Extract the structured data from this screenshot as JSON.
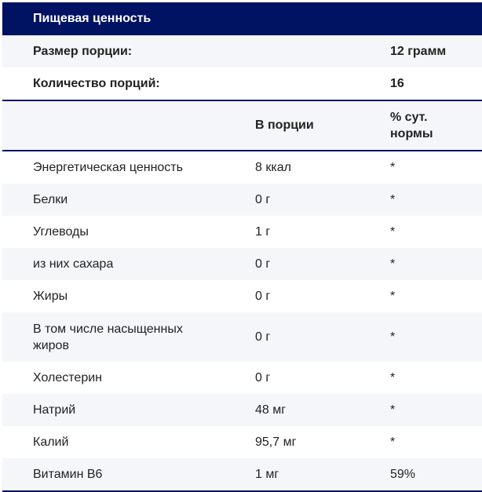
{
  "title": "Пищевая ценность",
  "serving_size": {
    "label": "Размер порции:",
    "value": "12 грамм"
  },
  "servings_count": {
    "label": "Количество порций:",
    "value": "16"
  },
  "columns": {
    "per_serving": "В порции",
    "daily_value": "% сут. нормы"
  },
  "rows": [
    {
      "name": "Энергетическая ценность",
      "amount": "8 ккал",
      "dv": "*"
    },
    {
      "name": "Белки",
      "amount": "0 г",
      "dv": "*"
    },
    {
      "name": "Углеводы",
      "amount": "1 г",
      "dv": "*"
    },
    {
      "name": "из них сахара",
      "amount": "0 г",
      "dv": "*"
    },
    {
      "name": "Жиры",
      "amount": "0 г",
      "dv": "*"
    },
    {
      "name": "В том числе насыщенных жиров",
      "amount": "0 г",
      "dv": "*"
    },
    {
      "name": "Холестерин",
      "amount": "0 г",
      "dv": "*"
    },
    {
      "name": "Натрий",
      "amount": "48 мг",
      "dv": "*"
    },
    {
      "name": "Калий",
      "amount": "95,7 мг",
      "dv": "*"
    },
    {
      "name": "Витамин В6",
      "amount": "1 мг",
      "dv": "59%"
    }
  ],
  "colors": {
    "header": "#001262",
    "stripe": "#f5f6fa"
  }
}
